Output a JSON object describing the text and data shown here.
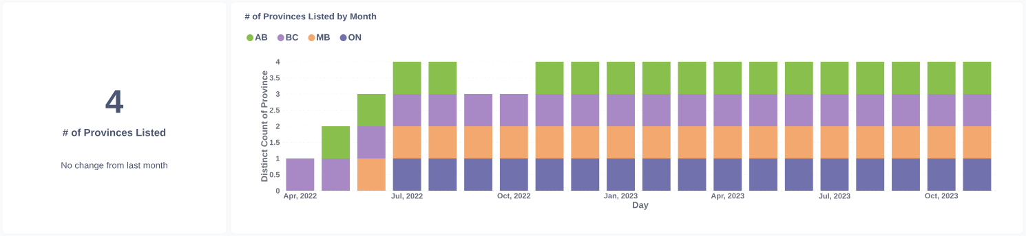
{
  "chart_data": [
    {
      "type": "other",
      "title": "# of Provinces Listed",
      "values": [
        4
      ],
      "data_labels": true,
      "annotations": [
        "No change from last month"
      ]
    },
    {
      "type": "bar",
      "stacked": true,
      "title": "# of Provinces Listed by Month",
      "xlabel": "Day",
      "ylabel": "Distinct Count of Province",
      "categories": [
        "Apr, 2022",
        null,
        null,
        "Jul, 2022",
        null,
        null,
        "Oct, 2022",
        null,
        null,
        "Jan, 2023",
        null,
        null,
        "Apr, 2023",
        null,
        null,
        "Jul, 2023",
        null,
        null,
        "Oct, 2023",
        null
      ],
      "series": [
        {
          "name": "ON",
          "color": "#7172ad",
          "values": [
            null,
            null,
            null,
            1,
            1,
            1,
            1,
            1,
            1,
            1,
            1,
            1,
            1,
            1,
            1,
            1,
            1,
            1,
            1,
            1
          ]
        },
        {
          "name": "MB",
          "color": "#f2a86f",
          "values": [
            null,
            null,
            1,
            1,
            1,
            1,
            1,
            1,
            1,
            1,
            1,
            1,
            1,
            1,
            1,
            1,
            1,
            1,
            1,
            1
          ]
        },
        {
          "name": "BC",
          "color": "#a989c5",
          "values": [
            1,
            1,
            1,
            1,
            1,
            1,
            1,
            1,
            1,
            1,
            1,
            1,
            1,
            1,
            1,
            1,
            1,
            1,
            1,
            1
          ]
        },
        {
          "name": "AB",
          "color": "#88bf4d",
          "values": [
            null,
            1,
            1,
            1,
            1,
            null,
            null,
            1,
            1,
            1,
            1,
            1,
            1,
            1,
            1,
            1,
            1,
            1,
            1,
            1
          ]
        }
      ],
      "ylim": [
        0,
        4
      ],
      "yticks": [
        0,
        0.5,
        1,
        1.5,
        2,
        2.5,
        3,
        3.5,
        4
      ],
      "grid": "y",
      "legend": "top left"
    }
  ]
}
